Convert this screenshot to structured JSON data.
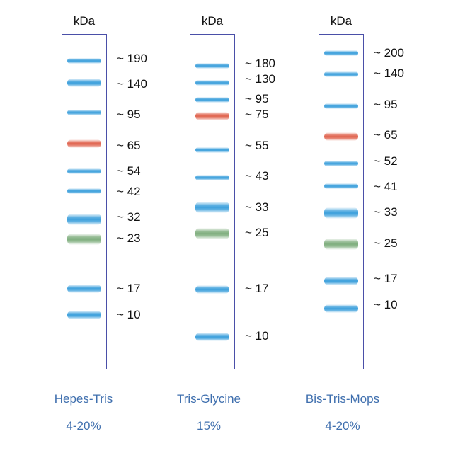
{
  "colors": {
    "blue": "#3da0dc",
    "red": "#e0644f",
    "green": "#7fae7e",
    "border": "#4a4fa8",
    "caption": "#3f6fae"
  },
  "ladders": [
    {
      "header": "kDa",
      "name": "Hepes-Tris",
      "percent": "4-20%",
      "bands": [
        {
          "label": "~ 190",
          "kda": 190,
          "color": "blue",
          "weight": "thin"
        },
        {
          "label": "~ 140",
          "kda": 140,
          "color": "blue",
          "weight": "medium"
        },
        {
          "label": "~ 95",
          "kda": 95,
          "color": "blue",
          "weight": "thin"
        },
        {
          "label": "~ 65",
          "kda": 65,
          "color": "red",
          "weight": "medium"
        },
        {
          "label": "~ 54",
          "kda": 54,
          "color": "blue",
          "weight": "thin"
        },
        {
          "label": "~ 42",
          "kda": 42,
          "color": "blue",
          "weight": "thin"
        },
        {
          "label": "~ 32",
          "kda": 32,
          "color": "blue",
          "weight": "thick"
        },
        {
          "label": "~ 23",
          "kda": 23,
          "color": "green",
          "weight": "thick"
        },
        {
          "label": "~ 17",
          "kda": 17,
          "color": "blue",
          "weight": "medium"
        },
        {
          "label": "~ 10",
          "kda": 10,
          "color": "blue",
          "weight": "medium"
        }
      ]
    },
    {
      "header": "kDa",
      "name": "Tris-Glycine",
      "percent": "15%",
      "bands": [
        {
          "label": "~ 180",
          "kda": 180,
          "color": "blue",
          "weight": "thin"
        },
        {
          "label": "~ 130",
          "kda": 130,
          "color": "blue",
          "weight": "thin"
        },
        {
          "label": "~ 95",
          "kda": 95,
          "color": "blue",
          "weight": "thin"
        },
        {
          "label": "~ 75",
          "kda": 75,
          "color": "red",
          "weight": "medium"
        },
        {
          "label": "~ 55",
          "kda": 55,
          "color": "blue",
          "weight": "thin"
        },
        {
          "label": "~ 43",
          "kda": 43,
          "color": "blue",
          "weight": "thin"
        },
        {
          "label": "~ 33",
          "kda": 33,
          "color": "blue",
          "weight": "thick"
        },
        {
          "label": "~ 25",
          "kda": 25,
          "color": "green",
          "weight": "thick"
        },
        {
          "label": "~ 17",
          "kda": 17,
          "color": "blue",
          "weight": "medium"
        },
        {
          "label": "~ 10",
          "kda": 10,
          "color": "blue",
          "weight": "medium"
        }
      ]
    },
    {
      "header": "kDa",
      "name": "Bis-Tris-Mops",
      "percent": "4-20%",
      "bands": [
        {
          "label": "~ 200",
          "kda": 200,
          "color": "blue",
          "weight": "thin"
        },
        {
          "label": "~ 140",
          "kda": 140,
          "color": "blue",
          "weight": "thin"
        },
        {
          "label": "~ 95",
          "kda": 95,
          "color": "blue",
          "weight": "thin"
        },
        {
          "label": "~ 65",
          "kda": 65,
          "color": "red",
          "weight": "medium"
        },
        {
          "label": "~ 52",
          "kda": 52,
          "color": "blue",
          "weight": "thin"
        },
        {
          "label": "~ 41",
          "kda": 41,
          "color": "blue",
          "weight": "thin"
        },
        {
          "label": "~ 33",
          "kda": 33,
          "color": "blue",
          "weight": "thick"
        },
        {
          "label": "~ 25",
          "kda": 25,
          "color": "green",
          "weight": "thick"
        },
        {
          "label": "~ 17",
          "kda": 17,
          "color": "blue",
          "weight": "medium"
        },
        {
          "label": "~ 10",
          "kda": 10,
          "color": "blue",
          "weight": "medium"
        }
      ]
    }
  ]
}
